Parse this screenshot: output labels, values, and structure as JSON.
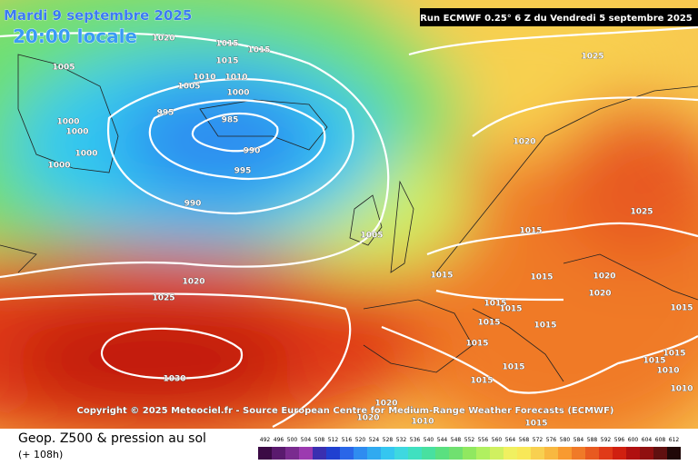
{
  "header": {
    "date": "Mardi 9 septembre 2025",
    "time": "20:00 locale",
    "run": "Run ECMWF 0.25° 6 Z du Vendredi 5 septembre 2025"
  },
  "copyright": "Copyright © 2025 Meteociel.fr - Source European Centre for Medium-Range Weather Forecasts (ECMWF)",
  "footer": {
    "title": "Geop. Z500 & pression au sol",
    "lead": "(+ 108h)"
  },
  "isobar_labels": [
    1020,
    1015,
    1015,
    1005,
    1015,
    1010,
    1010,
    1005,
    1000,
    995,
    985,
    1000,
    1000,
    990,
    1000,
    1000,
    995,
    990,
    1005,
    1020,
    1025,
    1030,
    1025,
    1020,
    1025,
    1015,
    1015,
    1015,
    1020,
    1020,
    1015,
    1015,
    1015,
    1015,
    1015,
    1015,
    1015,
    1015,
    1015,
    1015,
    1010,
    1010,
    1020,
    1010,
    1015,
    1020
  ],
  "legend": {
    "ticks": [
      492,
      496,
      500,
      504,
      508,
      512,
      516,
      520,
      524,
      528,
      532,
      536,
      540,
      544,
      548,
      552,
      556,
      560,
      564,
      568,
      572,
      576,
      580,
      584,
      588,
      592,
      596,
      600,
      604,
      608,
      612
    ],
    "colors": [
      "#3b0a45",
      "#5a1a6e",
      "#7a2b8f",
      "#9c3ab0",
      "#3a2fb0",
      "#2040d0",
      "#2a66e8",
      "#2f8cf0",
      "#30aaf0",
      "#35c6f0",
      "#3ed8e0",
      "#40e0c0",
      "#48e0a0",
      "#5ae080",
      "#70e070",
      "#90e860",
      "#b0f060",
      "#d0f060",
      "#f0f060",
      "#f8e858",
      "#f8d050",
      "#f8b840",
      "#f89a30",
      "#f07a28",
      "#e85a20",
      "#e03a18",
      "#d02010",
      "#b01010",
      "#901010",
      "#601010",
      "#200808"
    ]
  }
}
